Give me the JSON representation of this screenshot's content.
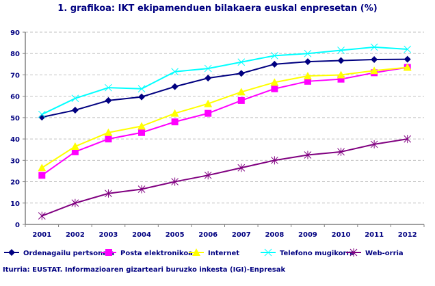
{
  "title": "1. grafikoa: IKT ekipamenduen bilakaera euskal enpresetan (%)",
  "source": "Iturria: EUSTAT. Informazioaren gizarteari buruzko inkesta (IGI)-Enpresak",
  "chart_data": {
    "type": "line",
    "title": "1. grafikoa: IKT ekipamenduen bilakaera euskal enpresetan (%)",
    "categories": [
      "2001",
      "2002",
      "2003",
      "2004",
      "2005",
      "2006",
      "2007",
      "2008",
      "2009",
      "2010",
      "2011",
      "2012"
    ],
    "ylim": [
      0,
      90
    ],
    "yticks": [
      0,
      10,
      20,
      30,
      40,
      50,
      60,
      70,
      80,
      90
    ],
    "grid": true,
    "legend": "bottom",
    "series": [
      {
        "name": "Ordenagailu pertsonala",
        "color": "#000080",
        "marker": "diamond",
        "values": [
          50.2,
          53.5,
          58,
          59.7,
          64.5,
          68.5,
          70.7,
          75,
          76.2,
          76.7,
          77.2,
          77.3
        ]
      },
      {
        "name": "Posta elektronikoa",
        "color": "#FF00FF",
        "marker": "square",
        "values": [
          23,
          34,
          40,
          43,
          48,
          52,
          58,
          63.5,
          67,
          68,
          71,
          73.5
        ]
      },
      {
        "name": "Internet",
        "color": "#FFFF00",
        "marker": "triangle",
        "values": [
          26.5,
          36.5,
          43,
          46,
          52,
          56.5,
          62,
          66.5,
          69.5,
          70,
          72,
          73.5
        ]
      },
      {
        "name": "Telefono mugikorra",
        "color": "#00FFFF",
        "marker": "x",
        "values": [
          51.5,
          59,
          64,
          63.5,
          71.5,
          73,
          76,
          79,
          80,
          81.5,
          83,
          82
        ]
      },
      {
        "name": "Web-orria",
        "color": "#800080",
        "marker": "star",
        "values": [
          4,
          10,
          14.5,
          16.5,
          20,
          23,
          26.5,
          30,
          32.5,
          34,
          37.5,
          40
        ]
      }
    ]
  }
}
